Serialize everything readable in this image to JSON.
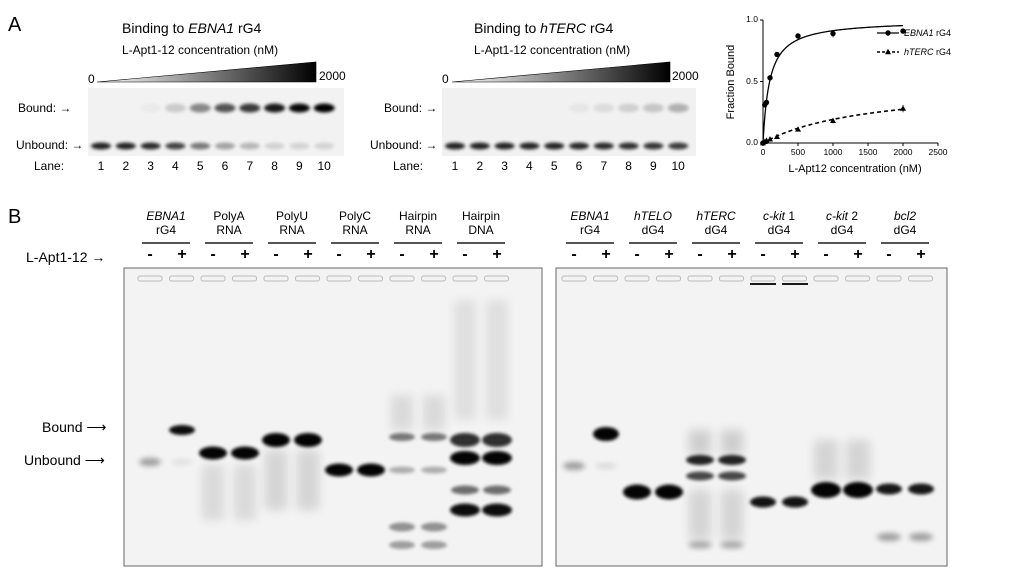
{
  "panels": {
    "a": {
      "letter": "A",
      "gel1": {
        "title_pre": "Binding to ",
        "title_it": "EBNA1",
        "title_post": " rG4",
        "subtitle": "L-Apt1-12 concentration (nM)",
        "min_label": "0",
        "max_label": "2000",
        "lanes": [
          "1",
          "2",
          "3",
          "4",
          "5",
          "6",
          "7",
          "8",
          "9",
          "10"
        ],
        "bound_fraction": [
          0,
          0,
          0.03,
          0.15,
          0.42,
          0.62,
          0.72,
          0.85,
          0.92,
          0.96
        ]
      },
      "gel2": {
        "title_pre": "Binding to ",
        "title_it": "hTERC",
        "title_post": " rG4",
        "subtitle": "L-Apt1-12 concentration (nM)",
        "min_label": "0",
        "max_label": "2000",
        "lanes": [
          "1",
          "2",
          "3",
          "4",
          "5",
          "6",
          "7",
          "8",
          "9",
          "10"
        ],
        "bound_fraction": [
          0,
          0,
          0,
          0,
          0,
          0.02,
          0.04,
          0.06,
          0.08,
          0.12
        ]
      },
      "labels": {
        "bound": "Bound:",
        "unbound": "Unbound:",
        "lane": "Lane:"
      }
    },
    "b": {
      "letter": "B",
      "reagent_label": "L-Apt1-12",
      "bound_label": "Bound",
      "unbound_label": "Unbound",
      "minus": "-",
      "plus": "+",
      "gel_left": [
        {
          "l1": "EBNA1",
          "l1_it": true,
          "l1_tail": "",
          "l2": "rG4"
        },
        {
          "l1": "PolyA",
          "l1_it": false,
          "l1_tail": "",
          "l2": "RNA"
        },
        {
          "l1": "PolyU",
          "l1_it": false,
          "l1_tail": "",
          "l2": "RNA"
        },
        {
          "l1": "PolyC",
          "l1_it": false,
          "l1_tail": "",
          "l2": "RNA"
        },
        {
          "l1": "Hairpin",
          "l1_it": false,
          "l1_tail": "",
          "l2": "RNA"
        },
        {
          "l1": "Hairpin",
          "l1_it": false,
          "l1_tail": "",
          "l2": "DNA"
        }
      ],
      "gel_right": [
        {
          "l1": "EBNA1",
          "l1_it": true,
          "l1_tail": "",
          "l2": "rG4"
        },
        {
          "l1": "hTELO",
          "l1_it": true,
          "l1_tail": "",
          "l2": "dG4"
        },
        {
          "l1": "hTERC",
          "l1_it": true,
          "l1_tail": "",
          "l2": "dG4"
        },
        {
          "l1": "c-kit",
          "l1_it": true,
          "l1_tail": " 1",
          "l2": "dG4"
        },
        {
          "l1": "c-kit",
          "l1_it": true,
          "l1_tail": " 2",
          "l2": "dG4"
        },
        {
          "l1": "bcl2",
          "l1_it": true,
          "l1_tail": "",
          "l2": "dG4"
        }
      ]
    }
  },
  "chart_data": {
    "type": "scatter",
    "title": "",
    "xlabel": "L-Apt12 concentration (nM)",
    "ylabel": "Fraction Bound",
    "xlim": [
      0,
      2500
    ],
    "ylim": [
      0,
      1.0
    ],
    "xticks": [
      "0",
      "500",
      "1000",
      "1500",
      "2000",
      "2500"
    ],
    "yticks": [
      "0.0",
      "0.5",
      "1.0"
    ],
    "legend_position": "right",
    "series": [
      {
        "name_it": "EBNA1",
        "name_tail": " rG4",
        "marker": "circle",
        "line": "solid",
        "x": [
          0,
          25,
          50,
          100,
          200,
          500,
          1000,
          2000
        ],
        "y": [
          0.0,
          0.31,
          0.33,
          0.53,
          0.72,
          0.87,
          0.89,
          0.91
        ],
        "err": [
          0.01,
          0.02,
          0.02,
          0.02,
          0.02,
          0.02,
          0.03,
          0.01
        ]
      },
      {
        "name_it": "hTERC",
        "name_tail": " rG4",
        "marker": "triangle",
        "line": "dashed",
        "x": [
          0,
          25,
          50,
          100,
          200,
          500,
          1000,
          2000
        ],
        "y": [
          0.0,
          0.01,
          0.02,
          0.03,
          0.05,
          0.11,
          0.18,
          0.28
        ],
        "err": [
          0.01,
          0.01,
          0.01,
          0.01,
          0.01,
          0.01,
          0.02,
          0.03
        ]
      }
    ]
  }
}
